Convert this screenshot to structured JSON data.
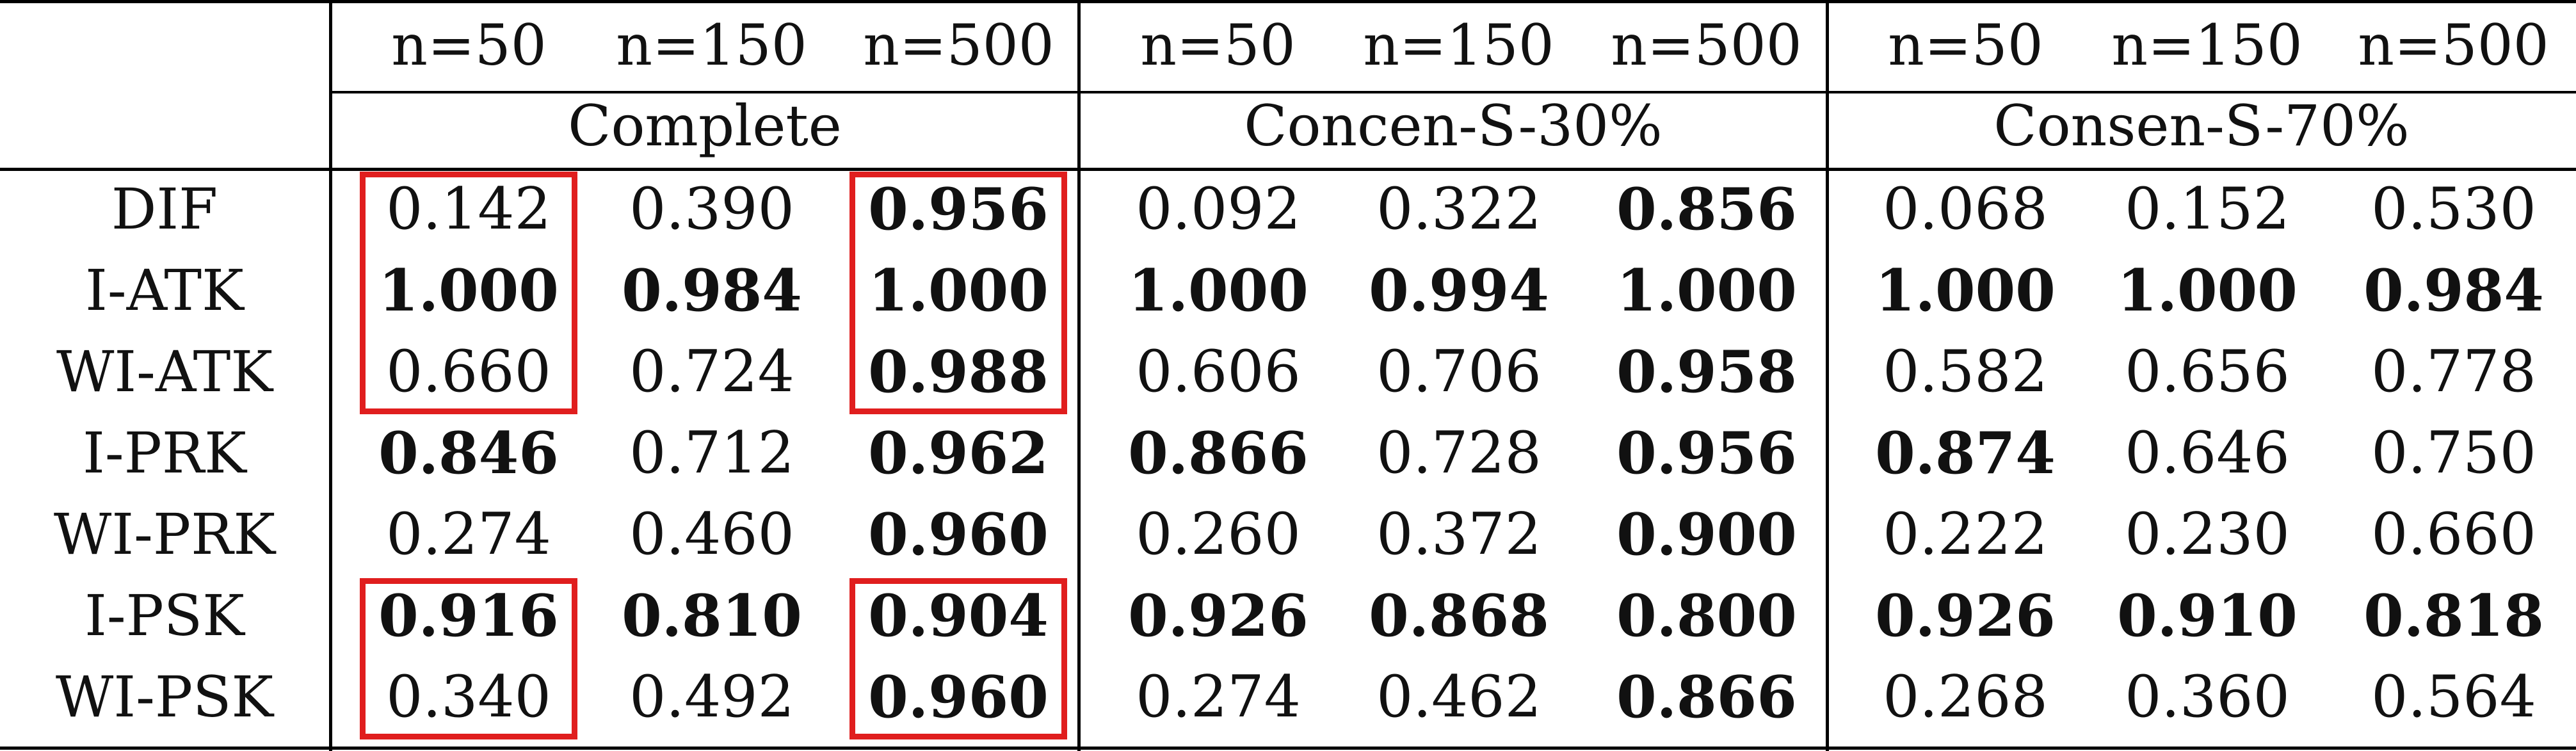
{
  "table": {
    "column_headers": [
      "n=50",
      "n=150",
      "n=500",
      "n=50",
      "n=150",
      "n=500",
      "n=50",
      "n=150",
      "n=500"
    ],
    "groups": [
      "Complete",
      "Concen-S-30%",
      "Consen-S-70%"
    ],
    "rows": [
      {
        "label": "DIF",
        "values": [
          "0.142",
          "0.390",
          "0.956",
          "0.092",
          "0.322",
          "0.856",
          "0.068",
          "0.152",
          "0.530"
        ],
        "bold": [
          false,
          false,
          true,
          false,
          false,
          true,
          false,
          false,
          false
        ]
      },
      {
        "label": "I-ATK",
        "values": [
          "1.000",
          "0.984",
          "1.000",
          "1.000",
          "0.994",
          "1.000",
          "1.000",
          "1.000",
          "0.984"
        ],
        "bold": [
          true,
          true,
          true,
          true,
          true,
          true,
          true,
          true,
          true
        ]
      },
      {
        "label": "WI-ATK",
        "values": [
          "0.660",
          "0.724",
          "0.988",
          "0.606",
          "0.706",
          "0.958",
          "0.582",
          "0.656",
          "0.778"
        ],
        "bold": [
          false,
          false,
          true,
          false,
          false,
          true,
          false,
          false,
          false
        ]
      },
      {
        "label": "I-PRK",
        "values": [
          "0.846",
          "0.712",
          "0.962",
          "0.866",
          "0.728",
          "0.956",
          "0.874",
          "0.646",
          "0.750"
        ],
        "bold": [
          true,
          false,
          true,
          true,
          false,
          true,
          true,
          false,
          false
        ]
      },
      {
        "label": "WI-PRK",
        "values": [
          "0.274",
          "0.460",
          "0.960",
          "0.260",
          "0.372",
          "0.900",
          "0.222",
          "0.230",
          "0.660"
        ],
        "bold": [
          false,
          false,
          true,
          false,
          false,
          true,
          false,
          false,
          false
        ]
      },
      {
        "label": "I-PSK",
        "values": [
          "0.916",
          "0.810",
          "0.904",
          "0.926",
          "0.868",
          "0.800",
          "0.926",
          "0.910",
          "0.818"
        ],
        "bold": [
          true,
          true,
          true,
          true,
          true,
          true,
          true,
          true,
          true
        ]
      },
      {
        "label": "WI-PSK",
        "values": [
          "0.340",
          "0.492",
          "0.960",
          "0.274",
          "0.462",
          "0.866",
          "0.268",
          "0.360",
          "0.564"
        ],
        "bold": [
          false,
          false,
          true,
          false,
          false,
          true,
          false,
          false,
          false
        ]
      }
    ],
    "highlights": [
      {
        "rows": [
          "DIF",
          "WI-ATK"
        ],
        "column": 0
      },
      {
        "rows": [
          "DIF",
          "WI-ATK"
        ],
        "column": 2
      },
      {
        "rows": [
          "I-PSK",
          "WI-PSK"
        ],
        "column": 0
      },
      {
        "rows": [
          "I-PSK",
          "WI-PSK"
        ],
        "column": 2
      }
    ],
    "highlight_color": "#e01e1e"
  }
}
